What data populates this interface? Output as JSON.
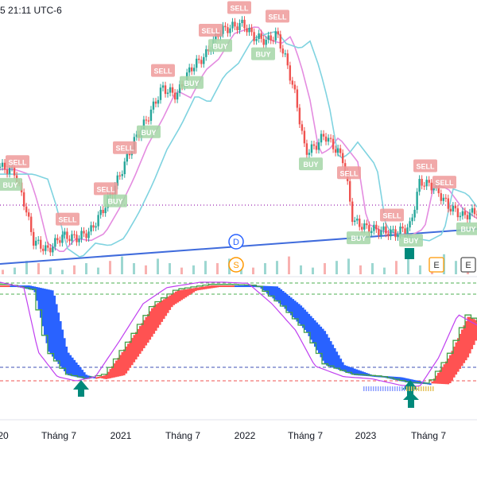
{
  "header": {
    "timestamp": "5 21:11 UTC-6"
  },
  "colors": {
    "up": "#26a69a",
    "down": "#ef5350",
    "ema_fast": "#e48ce0",
    "ema_slow": "#7fd3e0",
    "trend": "#3f6bdc",
    "dotted_level": "#9c27b0",
    "buy_bg": "#a5d6a7",
    "sell_bg": "#ef9a9a",
    "osc_red": "#ff5252",
    "osc_blue": "#2962ff",
    "osc_green": "#43a047",
    "osc_purple": "#c040f0",
    "arrow": "#00897b",
    "dash_green": "#4caf50",
    "dash_blue": "#3f51b5",
    "dash_red": "#ef5350",
    "icon_d": "#2962ff",
    "icon_s": "#ff9800"
  },
  "labels": {
    "sell": "SELL",
    "buy": "BUY",
    "dividend_icon": "D",
    "split_icon": "S",
    "earnings_icon": "E"
  },
  "chart_data": [
    {
      "type": "candlestick",
      "title": "",
      "x_ticks": [
        "20",
        "Tháng 7",
        "2021",
        "Tháng 7",
        "2022",
        "Tháng 7",
        "2023",
        "Tháng 7"
      ],
      "price_series": [
        {
          "t": 0,
          "close": 0.42
        },
        {
          "t": 0.03,
          "close": 0.4
        },
        {
          "t": 0.05,
          "close": 0.28
        },
        {
          "t": 0.07,
          "close": 0.12
        },
        {
          "t": 0.1,
          "close": 0.08
        },
        {
          "t": 0.13,
          "close": 0.14
        },
        {
          "t": 0.16,
          "close": 0.13
        },
        {
          "t": 0.19,
          "close": 0.16
        },
        {
          "t": 0.22,
          "close": 0.26
        },
        {
          "t": 0.25,
          "close": 0.38
        },
        {
          "t": 0.28,
          "close": 0.52
        },
        {
          "t": 0.31,
          "close": 0.62
        },
        {
          "t": 0.34,
          "close": 0.74
        },
        {
          "t": 0.37,
          "close": 0.71
        },
        {
          "t": 0.4,
          "close": 0.82
        },
        {
          "t": 0.43,
          "close": 0.87
        },
        {
          "t": 0.46,
          "close": 0.97
        },
        {
          "t": 0.49,
          "close": 0.99
        },
        {
          "t": 0.51,
          "close": 1.0
        },
        {
          "t": 0.53,
          "close": 0.95
        },
        {
          "t": 0.56,
          "close": 0.93
        },
        {
          "t": 0.58,
          "close": 0.96
        },
        {
          "t": 0.6,
          "close": 0.85
        },
        {
          "t": 0.62,
          "close": 0.7
        },
        {
          "t": 0.64,
          "close": 0.48
        },
        {
          "t": 0.66,
          "close": 0.5
        },
        {
          "t": 0.68,
          "close": 0.55
        },
        {
          "t": 0.7,
          "close": 0.5
        },
        {
          "t": 0.72,
          "close": 0.45
        },
        {
          "t": 0.74,
          "close": 0.2
        },
        {
          "t": 0.77,
          "close": 0.17
        },
        {
          "t": 0.8,
          "close": 0.16
        },
        {
          "t": 0.83,
          "close": 0.15
        },
        {
          "t": 0.86,
          "close": 0.18
        },
        {
          "t": 0.88,
          "close": 0.36
        },
        {
          "t": 0.91,
          "close": 0.34
        },
        {
          "t": 0.94,
          "close": 0.26
        },
        {
          "t": 0.97,
          "close": 0.22
        },
        {
          "t": 1.0,
          "close": 0.24
        }
      ],
      "signals": [
        {
          "t": 0.035,
          "type": "SELL"
        },
        {
          "t": 0.02,
          "type": "BUY"
        },
        {
          "t": 0.14,
          "type": "SELL"
        },
        {
          "t": 0.22,
          "type": "SELL"
        },
        {
          "t": 0.24,
          "type": "BUY"
        },
        {
          "t": 0.26,
          "type": "SELL"
        },
        {
          "t": 0.31,
          "type": "BUY"
        },
        {
          "t": 0.34,
          "type": "SELL"
        },
        {
          "t": 0.4,
          "type": "BUY"
        },
        {
          "t": 0.44,
          "type": "SELL"
        },
        {
          "t": 0.46,
          "type": "BUY"
        },
        {
          "t": 0.5,
          "type": "SELL"
        },
        {
          "t": 0.55,
          "type": "BUY"
        },
        {
          "t": 0.58,
          "type": "SELL"
        },
        {
          "t": 0.65,
          "type": "BUY"
        },
        {
          "t": 0.73,
          "type": "SELL"
        },
        {
          "t": 0.75,
          "type": "BUY"
        },
        {
          "t": 0.82,
          "type": "SELL"
        },
        {
          "t": 0.86,
          "type": "BUY"
        },
        {
          "t": 0.89,
          "type": "SELL"
        },
        {
          "t": 0.93,
          "type": "SELL"
        },
        {
          "t": 0.98,
          "type": "BUY"
        }
      ],
      "volume": [
        0.2,
        0.3,
        0.6,
        0.5,
        0.3,
        0.2,
        0.4,
        0.5,
        0.3,
        0.6,
        0.8,
        0.5,
        0.4,
        0.7,
        0.5,
        0.3,
        0.4,
        0.6,
        0.5,
        0.7,
        0.4,
        0.3,
        0.5,
        0.6,
        0.8,
        0.4,
        0.3,
        0.5,
        0.6,
        0.7,
        0.4,
        0.5,
        0.3,
        0.6,
        0.8,
        0.4,
        0.5,
        0.9,
        0.6,
        0.4
      ]
    },
    {
      "type": "oscillator",
      "purple_line": [
        {
          "t": 0.0,
          "v": 1.0
        },
        {
          "t": 0.05,
          "v": 0.95
        },
        {
          "t": 0.08,
          "v": 0.35
        },
        {
          "t": 0.12,
          "v": 0.12
        },
        {
          "t": 0.16,
          "v": 0.08
        },
        {
          "t": 0.2,
          "v": 0.12
        },
        {
          "t": 0.25,
          "v": 0.45
        },
        {
          "t": 0.3,
          "v": 0.8
        },
        {
          "t": 0.35,
          "v": 0.95
        },
        {
          "t": 0.42,
          "v": 1.0
        },
        {
          "t": 0.47,
          "v": 1.0
        },
        {
          "t": 0.52,
          "v": 0.99
        },
        {
          "t": 0.57,
          "v": 0.8
        },
        {
          "t": 0.62,
          "v": 0.55
        },
        {
          "t": 0.66,
          "v": 0.22
        },
        {
          "t": 0.72,
          "v": 0.12
        },
        {
          "t": 0.78,
          "v": 0.1
        },
        {
          "t": 0.84,
          "v": 0.04
        },
        {
          "t": 0.88,
          "v": 0.03
        },
        {
          "t": 0.92,
          "v": 0.3
        },
        {
          "t": 0.96,
          "v": 0.7
        },
        {
          "t": 1.0,
          "v": 0.6
        }
      ],
      "signal_arrows": [
        {
          "t": 0.17
        },
        {
          "t": 0.86
        }
      ]
    }
  ]
}
